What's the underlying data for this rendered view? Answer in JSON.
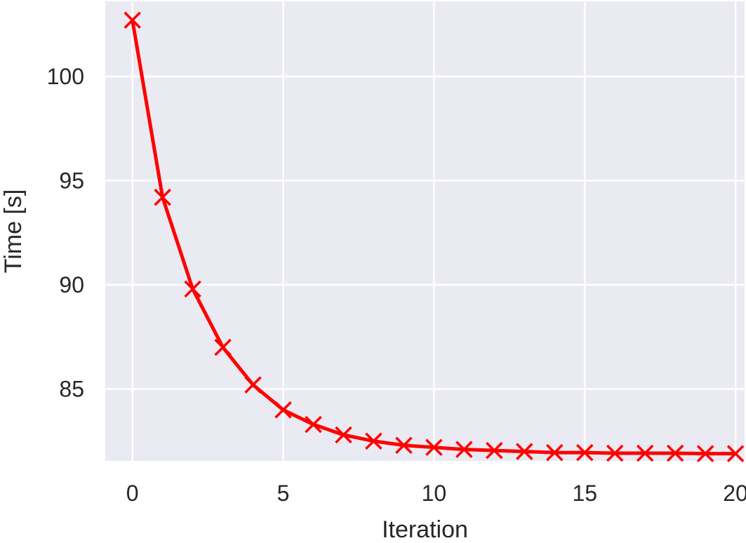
{
  "chart_data": {
    "type": "line",
    "title": "",
    "xlabel": "Iteration",
    "ylabel": "Time [s]",
    "xlim": [
      -0.9,
      20.3
    ],
    "ylim": [
      81.55,
      103.6
    ],
    "xticks": [
      0,
      5,
      10,
      15,
      20
    ],
    "yticks": [
      85,
      90,
      95,
      100
    ],
    "grid": true,
    "series": [
      {
        "color": "#ff0000",
        "marker": "x",
        "x": [
          0,
          1,
          2,
          3,
          4,
          5,
          6,
          7,
          8,
          9,
          10,
          11,
          12,
          13,
          14,
          15,
          16,
          17,
          18,
          19,
          20
        ],
        "y": [
          102.7,
          94.2,
          89.8,
          87.0,
          85.2,
          84.0,
          83.3,
          82.8,
          82.5,
          82.3,
          82.2,
          82.1,
          82.05,
          82.0,
          81.95,
          81.95,
          81.92,
          81.92,
          81.92,
          81.9,
          81.9
        ]
      }
    ]
  },
  "colors": {
    "plot_background": "#eaeaf2",
    "grid": "#ffffff",
    "series": "#ff0000"
  }
}
